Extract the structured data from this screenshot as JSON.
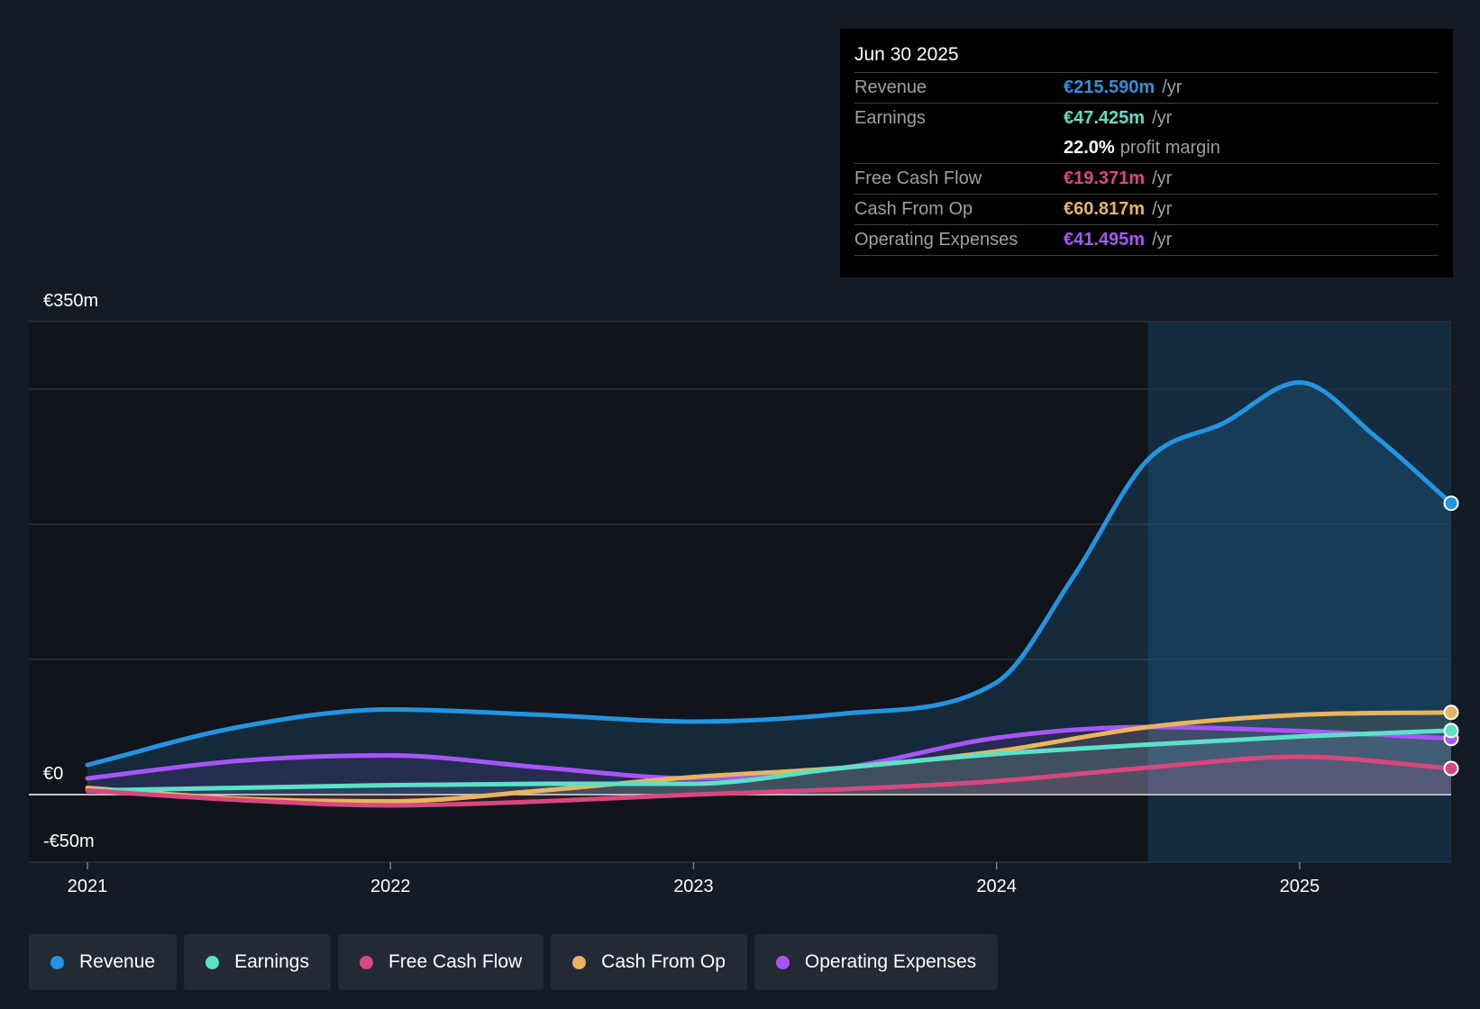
{
  "tooltip": {
    "date": "Jun 30 2025",
    "rows": [
      {
        "name": "Revenue",
        "value": "€215.590m",
        "unit": "/yr",
        "color": "#2394df"
      },
      {
        "name": "Earnings",
        "value": "€47.425m",
        "unit": "/yr",
        "color": "#5ce0c8"
      },
      {
        "margin_value": "22.0%",
        "margin_label": "profit margin"
      },
      {
        "name": "Free Cash Flow",
        "value": "€19.371m",
        "unit": "/yr",
        "color": "#d9477f"
      },
      {
        "name": "Cash From Op",
        "value": "€60.817m",
        "unit": "/yr",
        "color": "#e8b461"
      },
      {
        "name": "Operating Expenses",
        "value": "€41.495m",
        "unit": "/yr",
        "color": "#a855f7"
      }
    ]
  },
  "legend": [
    {
      "label": "Revenue",
      "color": "#2394df"
    },
    {
      "label": "Earnings",
      "color": "#5ce0c8"
    },
    {
      "label": "Free Cash Flow",
      "color": "#d9477f"
    },
    {
      "label": "Cash From Op",
      "color": "#e8b461"
    },
    {
      "label": "Operating Expenses",
      "color": "#a855f7"
    }
  ],
  "chart_data": {
    "type": "line",
    "title": "",
    "xlabel": "",
    "ylabel": "",
    "currency_unit": "€m",
    "y_tick_labels": [
      "€350m",
      "€0",
      "-€50m"
    ],
    "ylim": [
      -50,
      350
    ],
    "xlim": [
      2021.0,
      2025.5
    ],
    "x_tick_labels": [
      "2021",
      "2022",
      "2023",
      "2024",
      "2025"
    ],
    "x_ticks": [
      2021,
      2022,
      2023,
      2024,
      2025
    ],
    "gridlines": [
      350,
      300,
      200,
      100,
      0,
      -50
    ],
    "forecast_shade_start": 2024.5,
    "series": [
      {
        "name": "Revenue",
        "color": "#2394df",
        "x": [
          2021.0,
          2021.5,
          2022.0,
          2022.5,
          2023.0,
          2023.5,
          2024.0,
          2024.25,
          2024.5,
          2024.75,
          2025.0,
          2025.25,
          2025.5
        ],
        "y": [
          22,
          50,
          63,
          59,
          54,
          60,
          83,
          160,
          248,
          275,
          305,
          265,
          215.59
        ]
      },
      {
        "name": "Earnings",
        "color": "#5ce0c8",
        "x": [
          2021.0,
          2021.5,
          2022.0,
          2022.5,
          2023.0,
          2023.5,
          2024.0,
          2024.5,
          2025.0,
          2025.5
        ],
        "y": [
          3,
          5,
          7,
          8,
          8,
          20,
          30,
          37,
          43,
          47.425
        ]
      },
      {
        "name": "Free Cash Flow",
        "color": "#d9477f",
        "x": [
          2021.0,
          2021.5,
          2022.0,
          2022.5,
          2023.0,
          2023.5,
          2024.0,
          2024.5,
          2025.0,
          2025.5
        ],
        "y": [
          3,
          -4,
          -8,
          -5,
          0,
          4,
          10,
          20,
          28,
          19.371
        ]
      },
      {
        "name": "Cash From Op",
        "color": "#e8b461",
        "x": [
          2021.0,
          2021.5,
          2022.0,
          2022.5,
          2023.0,
          2023.5,
          2024.0,
          2024.5,
          2025.0,
          2025.5
        ],
        "y": [
          5,
          -3,
          -5,
          3,
          13,
          20,
          32,
          50,
          59,
          60.817
        ]
      },
      {
        "name": "Operating Expenses",
        "color": "#a855f7",
        "x": [
          2021.0,
          2021.5,
          2022.0,
          2022.5,
          2023.0,
          2023.5,
          2024.0,
          2024.5,
          2025.0,
          2025.5
        ],
        "y": [
          12,
          25,
          29,
          20,
          12,
          20,
          42,
          50,
          47,
          41.495
        ]
      }
    ]
  }
}
